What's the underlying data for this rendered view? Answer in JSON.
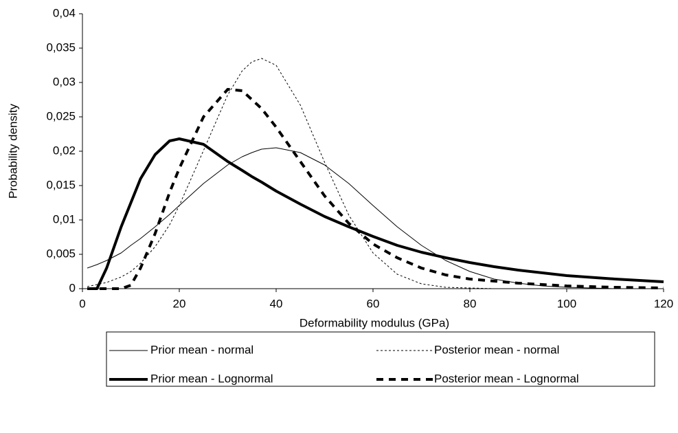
{
  "chart_data": {
    "type": "line",
    "xlabel": "Deformability modulus (GPa)",
    "ylabel": "Probability density",
    "x": [
      1,
      3,
      5,
      8,
      10,
      12,
      15,
      18,
      20,
      25,
      30,
      33,
      35,
      37,
      40,
      45,
      50,
      55,
      60,
      65,
      70,
      75,
      80,
      85,
      90,
      95,
      100,
      110,
      120
    ],
    "series": [
      {
        "name": "Prior mean - normal",
        "color": "#000000",
        "width": 1,
        "dash": "none",
        "values": [
          0.003,
          0.0035,
          0.0041,
          0.0052,
          0.0063,
          0.0073,
          0.009,
          0.0108,
          0.0121,
          0.0153,
          0.018,
          0.0192,
          0.0198,
          0.0203,
          0.0205,
          0.0198,
          0.018,
          0.0153,
          0.0121,
          0.009,
          0.0063,
          0.0041,
          0.0025,
          0.0014,
          0.0008,
          0.0004,
          0.0002,
          0,
          0
        ]
      },
      {
        "name": "Posterior mean - normal",
        "color": "#000000",
        "width": 1,
        "dash": "3,3",
        "values": [
          0.0003,
          0.0006,
          0.0009,
          0.0017,
          0.0025,
          0.0037,
          0.0061,
          0.0093,
          0.0121,
          0.0201,
          0.0282,
          0.0317,
          0.033,
          0.0335,
          0.0325,
          0.0267,
          0.0184,
          0.0107,
          0.0052,
          0.0021,
          0.0007,
          0.0002,
          0.0001,
          0,
          0,
          0,
          0,
          0,
          0
        ]
      },
      {
        "name": "Prior mean - Lognormal",
        "color": "#000000",
        "width": 4,
        "dash": "none",
        "values": [
          0,
          0,
          0.003,
          0.009,
          0.0125,
          0.016,
          0.0195,
          0.0215,
          0.0218,
          0.021,
          0.0185,
          0.0172,
          0.0163,
          0.0155,
          0.0142,
          0.0123,
          0.0105,
          0.009,
          0.0076,
          0.0063,
          0.0053,
          0.0045,
          0.0038,
          0.0032,
          0.0027,
          0.0023,
          0.0019,
          0.0014,
          0.001
        ]
      },
      {
        "name": "Posterior mean - Lognormal",
        "color": "#000000",
        "width": 4,
        "dash": "10,8",
        "values": [
          0,
          0,
          0,
          0,
          0.0005,
          0.003,
          0.008,
          0.014,
          0.0175,
          0.025,
          0.029,
          0.0288,
          0.0275,
          0.0262,
          0.0235,
          0.0185,
          0.0135,
          0.0095,
          0.0065,
          0.0045,
          0.003,
          0.002,
          0.0014,
          0.0011,
          0.0008,
          0.0006,
          0.0004,
          0.0002,
          0.0001
        ]
      }
    ],
    "xlim": [
      0,
      120
    ],
    "xticks": [
      0,
      20,
      40,
      60,
      80,
      100,
      120
    ],
    "ylim": [
      0,
      0.04
    ],
    "yticks": [
      0,
      {
        "value": 0.005,
        "label": "0,005"
      },
      {
        "value": 0.01,
        "label": "0,01"
      },
      {
        "value": 0.015,
        "label": "0,015"
      },
      {
        "value": 0.02,
        "label": "0,02"
      },
      {
        "value": 0.025,
        "label": "0,025"
      },
      {
        "value": 0.03,
        "label": "0,03"
      },
      {
        "value": 0.035,
        "label": "0,035"
      },
      {
        "value": 0.04,
        "label": "0,04"
      }
    ],
    "grid": false,
    "legend": "bottom"
  }
}
